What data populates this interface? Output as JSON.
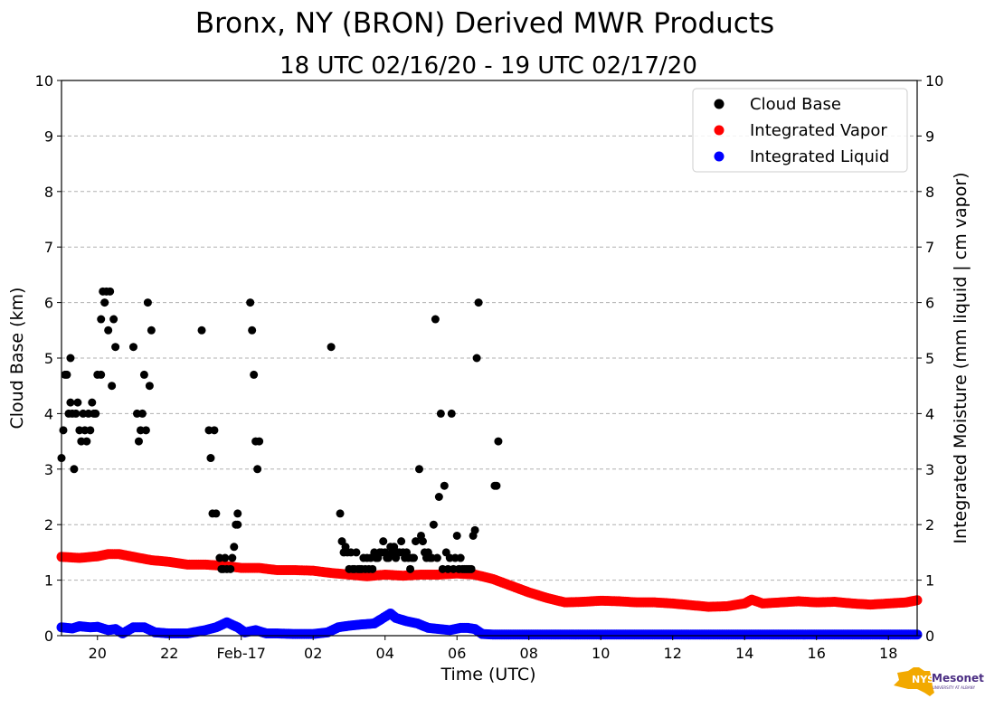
{
  "chart_data": {
    "type": "scatter",
    "title": "Bronx, NY (BRON) Derived MWR Products",
    "subtitle": "18 UTC 02/16/20 - 19 UTC 02/17/20",
    "xlabel": "Time (UTC)",
    "ylabel": "Cloud Base (km)",
    "y2label": "Integrated Moisture (mm liquid | cm vapor)",
    "xlim": [
      19.0,
      42.8
    ],
    "ylim": [
      0,
      10
    ],
    "y2lim": [
      0,
      10
    ],
    "x_ticks": [
      {
        "x": 20,
        "label": "20"
      },
      {
        "x": 22,
        "label": "22"
      },
      {
        "x": 24,
        "label": "Feb-17"
      },
      {
        "x": 26,
        "label": "02"
      },
      {
        "x": 28,
        "label": "04"
      },
      {
        "x": 30,
        "label": "06"
      },
      {
        "x": 32,
        "label": "08"
      },
      {
        "x": 34,
        "label": "10"
      },
      {
        "x": 36,
        "label": "12"
      },
      {
        "x": 38,
        "label": "14"
      },
      {
        "x": 40,
        "label": "16"
      },
      {
        "x": 42,
        "label": "18"
      }
    ],
    "y_ticks": [
      "0",
      "1",
      "2",
      "3",
      "4",
      "5",
      "6",
      "7",
      "8",
      "9",
      "10"
    ],
    "y2_ticks": [
      "0",
      "1",
      "2",
      "3",
      "4",
      "5",
      "6",
      "7",
      "8",
      "9",
      "10"
    ],
    "grid": "horizontal dashed",
    "legend_position": "top-right",
    "series": [
      {
        "name": "Cloud Base",
        "color": "#000000",
        "points": [
          [
            19.0,
            3.2
          ],
          [
            19.05,
            3.7
          ],
          [
            19.1,
            4.7
          ],
          [
            19.15,
            4.7
          ],
          [
            19.2,
            4.0
          ],
          [
            19.25,
            5.0
          ],
          [
            19.25,
            4.2
          ],
          [
            19.3,
            4.0
          ],
          [
            19.35,
            3.0
          ],
          [
            19.4,
            4.0
          ],
          [
            19.45,
            4.2
          ],
          [
            19.5,
            3.7
          ],
          [
            19.55,
            3.5
          ],
          [
            19.6,
            4.0
          ],
          [
            19.65,
            3.7
          ],
          [
            19.7,
            3.5
          ],
          [
            19.75,
            4.0
          ],
          [
            19.8,
            3.7
          ],
          [
            19.85,
            4.2
          ],
          [
            19.9,
            4.0
          ],
          [
            19.95,
            4.0
          ],
          [
            20.0,
            4.7
          ],
          [
            20.1,
            4.7
          ],
          [
            20.1,
            5.7
          ],
          [
            20.15,
            6.2
          ],
          [
            20.2,
            6.0
          ],
          [
            20.25,
            6.2
          ],
          [
            20.3,
            5.5
          ],
          [
            20.35,
            6.2
          ],
          [
            20.4,
            4.5
          ],
          [
            20.45,
            5.7
          ],
          [
            20.5,
            5.2
          ],
          [
            21.0,
            5.2
          ],
          [
            21.1,
            4.0
          ],
          [
            21.15,
            3.5
          ],
          [
            21.2,
            3.7
          ],
          [
            21.25,
            4.0
          ],
          [
            21.3,
            4.7
          ],
          [
            21.35,
            3.7
          ],
          [
            21.4,
            6.0
          ],
          [
            21.45,
            4.5
          ],
          [
            21.5,
            5.5
          ],
          [
            22.9,
            5.5
          ],
          [
            23.1,
            3.7
          ],
          [
            23.15,
            3.2
          ],
          [
            23.2,
            2.2
          ],
          [
            23.25,
            3.7
          ],
          [
            23.3,
            2.2
          ],
          [
            23.4,
            1.4
          ],
          [
            23.45,
            1.2
          ],
          [
            23.5,
            1.2
          ],
          [
            23.55,
            1.4
          ],
          [
            23.6,
            1.2
          ],
          [
            23.7,
            1.2
          ],
          [
            23.75,
            1.4
          ],
          [
            23.8,
            1.6
          ],
          [
            23.85,
            2.0
          ],
          [
            23.9,
            2.2
          ],
          [
            23.9,
            2.0
          ],
          [
            24.25,
            6.0
          ],
          [
            24.3,
            5.5
          ],
          [
            24.35,
            4.7
          ],
          [
            24.4,
            3.5
          ],
          [
            24.45,
            3.0
          ],
          [
            24.5,
            3.5
          ],
          [
            26.5,
            5.2
          ],
          [
            26.75,
            2.2
          ],
          [
            26.8,
            1.7
          ],
          [
            26.85,
            1.5
          ],
          [
            26.9,
            1.6
          ],
          [
            26.95,
            1.5
          ],
          [
            27.0,
            1.2
          ],
          [
            27.05,
            1.5
          ],
          [
            27.1,
            1.2
          ],
          [
            27.15,
            1.2
          ],
          [
            27.2,
            1.5
          ],
          [
            27.25,
            1.2
          ],
          [
            27.3,
            1.2
          ],
          [
            27.35,
            1.2
          ],
          [
            27.4,
            1.4
          ],
          [
            27.45,
            1.2
          ],
          [
            27.5,
            1.4
          ],
          [
            27.55,
            1.2
          ],
          [
            27.6,
            1.4
          ],
          [
            27.65,
            1.2
          ],
          [
            27.7,
            1.5
          ],
          [
            27.75,
            1.4
          ],
          [
            27.8,
            1.4
          ],
          [
            27.85,
            1.5
          ],
          [
            27.9,
            1.5
          ],
          [
            27.95,
            1.7
          ],
          [
            28.0,
            1.5
          ],
          [
            28.05,
            1.4
          ],
          [
            28.1,
            1.4
          ],
          [
            28.15,
            1.6
          ],
          [
            28.2,
            1.5
          ],
          [
            28.25,
            1.6
          ],
          [
            28.3,
            1.4
          ],
          [
            28.35,
            1.5
          ],
          [
            28.4,
            1.5
          ],
          [
            28.45,
            1.7
          ],
          [
            28.5,
            1.5
          ],
          [
            28.55,
            1.4
          ],
          [
            28.6,
            1.5
          ],
          [
            28.65,
            1.4
          ],
          [
            28.7,
            1.2
          ],
          [
            28.75,
            1.4
          ],
          [
            28.8,
            1.4
          ],
          [
            28.85,
            1.7
          ],
          [
            28.95,
            3.0
          ],
          [
            29.0,
            1.8
          ],
          [
            29.05,
            1.7
          ],
          [
            29.1,
            1.5
          ],
          [
            29.15,
            1.4
          ],
          [
            29.2,
            1.5
          ],
          [
            29.25,
            1.4
          ],
          [
            29.3,
            1.4
          ],
          [
            29.35,
            2.0
          ],
          [
            29.4,
            5.7
          ],
          [
            29.45,
            1.4
          ],
          [
            29.5,
            2.5
          ],
          [
            29.55,
            4.0
          ],
          [
            29.6,
            1.2
          ],
          [
            29.65,
            2.7
          ],
          [
            29.7,
            1.5
          ],
          [
            29.75,
            1.2
          ],
          [
            29.8,
            1.4
          ],
          [
            29.85,
            4.0
          ],
          [
            29.9,
            1.2
          ],
          [
            29.95,
            1.4
          ],
          [
            30.0,
            1.8
          ],
          [
            30.05,
            1.2
          ],
          [
            30.1,
            1.4
          ],
          [
            30.15,
            1.2
          ],
          [
            30.2,
            1.2
          ],
          [
            30.25,
            1.2
          ],
          [
            30.3,
            1.2
          ],
          [
            30.35,
            1.2
          ],
          [
            30.4,
            1.2
          ],
          [
            30.45,
            1.8
          ],
          [
            30.5,
            1.9
          ],
          [
            30.55,
            5.0
          ],
          [
            30.6,
            6.0
          ],
          [
            31.05,
            2.7
          ],
          [
            31.1,
            2.7
          ],
          [
            31.15,
            3.5
          ]
        ]
      },
      {
        "name": "Integrated Vapor",
        "color": "#ff0000",
        "points": [
          [
            19.0,
            1.42
          ],
          [
            19.5,
            1.4
          ],
          [
            20.0,
            1.43
          ],
          [
            20.3,
            1.47
          ],
          [
            20.6,
            1.47
          ],
          [
            21.0,
            1.42
          ],
          [
            21.5,
            1.36
          ],
          [
            22.0,
            1.33
          ],
          [
            22.5,
            1.28
          ],
          [
            23.0,
            1.28
          ],
          [
            23.5,
            1.26
          ],
          [
            24.0,
            1.22
          ],
          [
            24.5,
            1.22
          ],
          [
            25.0,
            1.18
          ],
          [
            25.5,
            1.18
          ],
          [
            26.0,
            1.17
          ],
          [
            26.5,
            1.13
          ],
          [
            27.0,
            1.1
          ],
          [
            27.5,
            1.07
          ],
          [
            28.0,
            1.1
          ],
          [
            28.5,
            1.08
          ],
          [
            29.0,
            1.1
          ],
          [
            29.5,
            1.1
          ],
          [
            30.0,
            1.12
          ],
          [
            30.5,
            1.1
          ],
          [
            31.0,
            1.02
          ],
          [
            31.5,
            0.9
          ],
          [
            32.0,
            0.78
          ],
          [
            32.5,
            0.68
          ],
          [
            33.0,
            0.6
          ],
          [
            33.5,
            0.61
          ],
          [
            34.0,
            0.63
          ],
          [
            34.5,
            0.62
          ],
          [
            35.0,
            0.6
          ],
          [
            35.5,
            0.6
          ],
          [
            36.0,
            0.58
          ],
          [
            36.5,
            0.55
          ],
          [
            37.0,
            0.52
          ],
          [
            37.5,
            0.53
          ],
          [
            38.0,
            0.58
          ],
          [
            38.2,
            0.65
          ],
          [
            38.5,
            0.58
          ],
          [
            39.0,
            0.6
          ],
          [
            39.5,
            0.62
          ],
          [
            40.0,
            0.6
          ],
          [
            40.5,
            0.61
          ],
          [
            41.0,
            0.58
          ],
          [
            41.5,
            0.56
          ],
          [
            42.0,
            0.58
          ],
          [
            42.5,
            0.6
          ],
          [
            42.8,
            0.64
          ]
        ]
      },
      {
        "name": "Integrated Liquid",
        "color": "#0000ff",
        "points": [
          [
            19.0,
            0.15
          ],
          [
            19.3,
            0.13
          ],
          [
            19.5,
            0.17
          ],
          [
            19.8,
            0.15
          ],
          [
            20.0,
            0.16
          ],
          [
            20.3,
            0.1
          ],
          [
            20.5,
            0.12
          ],
          [
            20.7,
            0.04
          ],
          [
            21.0,
            0.15
          ],
          [
            21.3,
            0.15
          ],
          [
            21.6,
            0.06
          ],
          [
            22.0,
            0.04
          ],
          [
            22.5,
            0.04
          ],
          [
            23.0,
            0.1
          ],
          [
            23.3,
            0.15
          ],
          [
            23.6,
            0.24
          ],
          [
            23.9,
            0.15
          ],
          [
            24.1,
            0.06
          ],
          [
            24.4,
            0.1
          ],
          [
            24.7,
            0.04
          ],
          [
            25.0,
            0.04
          ],
          [
            25.5,
            0.03
          ],
          [
            26.0,
            0.03
          ],
          [
            26.4,
            0.06
          ],
          [
            26.7,
            0.15
          ],
          [
            27.0,
            0.18
          ],
          [
            27.3,
            0.2
          ],
          [
            27.7,
            0.22
          ],
          [
            27.9,
            0.3
          ],
          [
            28.15,
            0.4
          ],
          [
            28.3,
            0.32
          ],
          [
            28.6,
            0.26
          ],
          [
            28.9,
            0.22
          ],
          [
            29.2,
            0.14
          ],
          [
            29.5,
            0.12
          ],
          [
            29.8,
            0.1
          ],
          [
            30.1,
            0.14
          ],
          [
            30.3,
            0.14
          ],
          [
            30.5,
            0.12
          ],
          [
            30.7,
            0.03
          ],
          [
            31.0,
            0.02
          ],
          [
            32.0,
            0.02
          ],
          [
            34.0,
            0.02
          ],
          [
            36.0,
            0.02
          ],
          [
            38.0,
            0.02
          ],
          [
            40.0,
            0.02
          ],
          [
            42.0,
            0.02
          ],
          [
            42.8,
            0.02
          ]
        ]
      }
    ]
  }
}
